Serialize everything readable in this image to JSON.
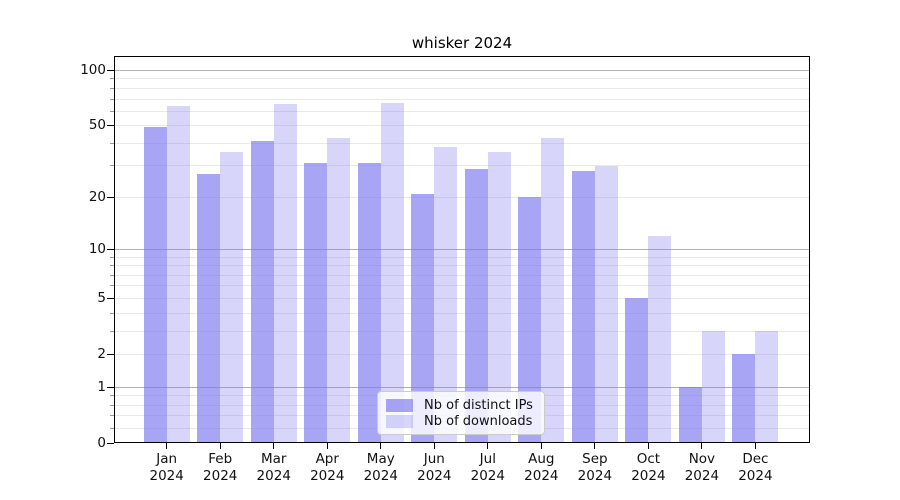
{
  "figure": {
    "title": "whisker 2024"
  },
  "chart_data": {
    "type": "bar",
    "title": "whisker 2024",
    "months": [
      "Jan",
      "Feb",
      "Mar",
      "Apr",
      "May",
      "Jun",
      "Jul",
      "Aug",
      "Sep",
      "Oct",
      "Nov",
      "Dec"
    ],
    "year": "2024",
    "categories": [
      "Jan 2024",
      "Feb 2024",
      "Mar 2024",
      "Apr 2024",
      "May 2024",
      "Jun 2024",
      "Jul 2024",
      "Aug 2024",
      "Sep 2024",
      "Oct 2024",
      "Nov 2024",
      "Dec 2024"
    ],
    "series": [
      {
        "name": "Nb of distinct IPs",
        "base_color": "#7b77f0",
        "alpha": 0.66,
        "values": [
          49,
          27,
          41,
          31,
          31,
          21,
          29,
          20,
          28,
          5,
          1,
          2
        ]
      },
      {
        "name": "Nb of downloads",
        "base_color": "#7b77f0",
        "alpha": 0.3,
        "values": [
          64,
          36,
          66,
          43,
          67,
          38,
          36,
          43,
          30,
          12,
          3,
          3
        ]
      }
    ],
    "yscale": "log1p",
    "ylim": [
      0,
      120
    ],
    "ytick_values": [
      0,
      1,
      2,
      5,
      10,
      20,
      50,
      100
    ],
    "ytick_labels": [
      "0",
      "1",
      "2",
      "5",
      "10",
      "20",
      "50",
      "100"
    ],
    "major_gridlines": [
      1,
      10,
      100
    ],
    "minor_gridlines": [
      0.2,
      0.4,
      0.6,
      0.8,
      2,
      3,
      4,
      5,
      6,
      7,
      8,
      9,
      20,
      30,
      40,
      50,
      60,
      70,
      80,
      90
    ],
    "legend_position": "lower center",
    "grid": true,
    "colors": {
      "bar_dark": "#a8a4f3",
      "bar_light": "#d8d6f8",
      "grid_major": "#b0b0b0",
      "grid_minor": "#e9e9e9",
      "axis": "#000000"
    }
  }
}
